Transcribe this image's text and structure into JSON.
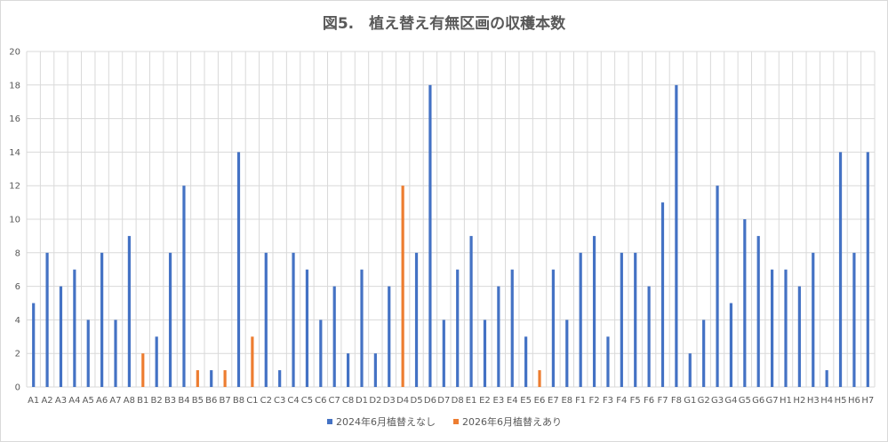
{
  "chart_data": {
    "type": "bar",
    "title": "図5.　植え替え有無区画の収穫本数",
    "xlabel": "",
    "ylabel": "",
    "ylim": [
      0,
      20
    ],
    "yticks": [
      0,
      2,
      4,
      6,
      8,
      10,
      12,
      14,
      16,
      18,
      20
    ],
    "grid": true,
    "legend_position": "bottom",
    "categories": [
      "A1",
      "A2",
      "A3",
      "A4",
      "A5",
      "A6",
      "A7",
      "A8",
      "B1",
      "B2",
      "B3",
      "B4",
      "B5",
      "B6",
      "B7",
      "B8",
      "C1",
      "C2",
      "C3",
      "C4",
      "C5",
      "C6",
      "C7",
      "C8",
      "D1",
      "D2",
      "D3",
      "D4",
      "D5",
      "D6",
      "D7",
      "D8",
      "E1",
      "E2",
      "E3",
      "E4",
      "E5",
      "E6",
      "E7",
      "E8",
      "F1",
      "F2",
      "F3",
      "F4",
      "F5",
      "F6",
      "F7",
      "F8",
      "G1",
      "G2",
      "G3",
      "G4",
      "G5",
      "G6",
      "G7",
      "H1",
      "H2",
      "H3",
      "H4",
      "H5",
      "H6",
      "H7"
    ],
    "series": [
      {
        "name": "2024年6月植替えなし",
        "color": "#4472C4",
        "values": [
          5,
          8,
          6,
          7,
          4,
          8,
          4,
          9,
          null,
          3,
          8,
          12,
          null,
          1,
          null,
          14,
          null,
          8,
          1,
          8,
          7,
          4,
          6,
          2,
          7,
          2,
          6,
          null,
          8,
          18,
          4,
          7,
          9,
          4,
          6,
          7,
          3,
          null,
          7,
          4,
          8,
          9,
          3,
          8,
          8,
          6,
          11,
          18,
          2,
          4,
          12,
          5,
          10,
          9,
          7,
          7,
          6,
          8,
          1,
          14,
          8,
          14
        ]
      },
      {
        "name": "2026年6月植替えあり",
        "color": "#ED7D31",
        "values": [
          null,
          null,
          null,
          null,
          null,
          null,
          null,
          null,
          2,
          null,
          null,
          null,
          1,
          null,
          1,
          null,
          3,
          null,
          null,
          null,
          null,
          null,
          null,
          null,
          null,
          null,
          null,
          12,
          null,
          null,
          null,
          null,
          null,
          null,
          null,
          null,
          null,
          1,
          null,
          null,
          null,
          null,
          null,
          null,
          null,
          null,
          null,
          null,
          null,
          null,
          null,
          null,
          null,
          null,
          null,
          null,
          null,
          null,
          null,
          null,
          null,
          null
        ]
      }
    ]
  }
}
